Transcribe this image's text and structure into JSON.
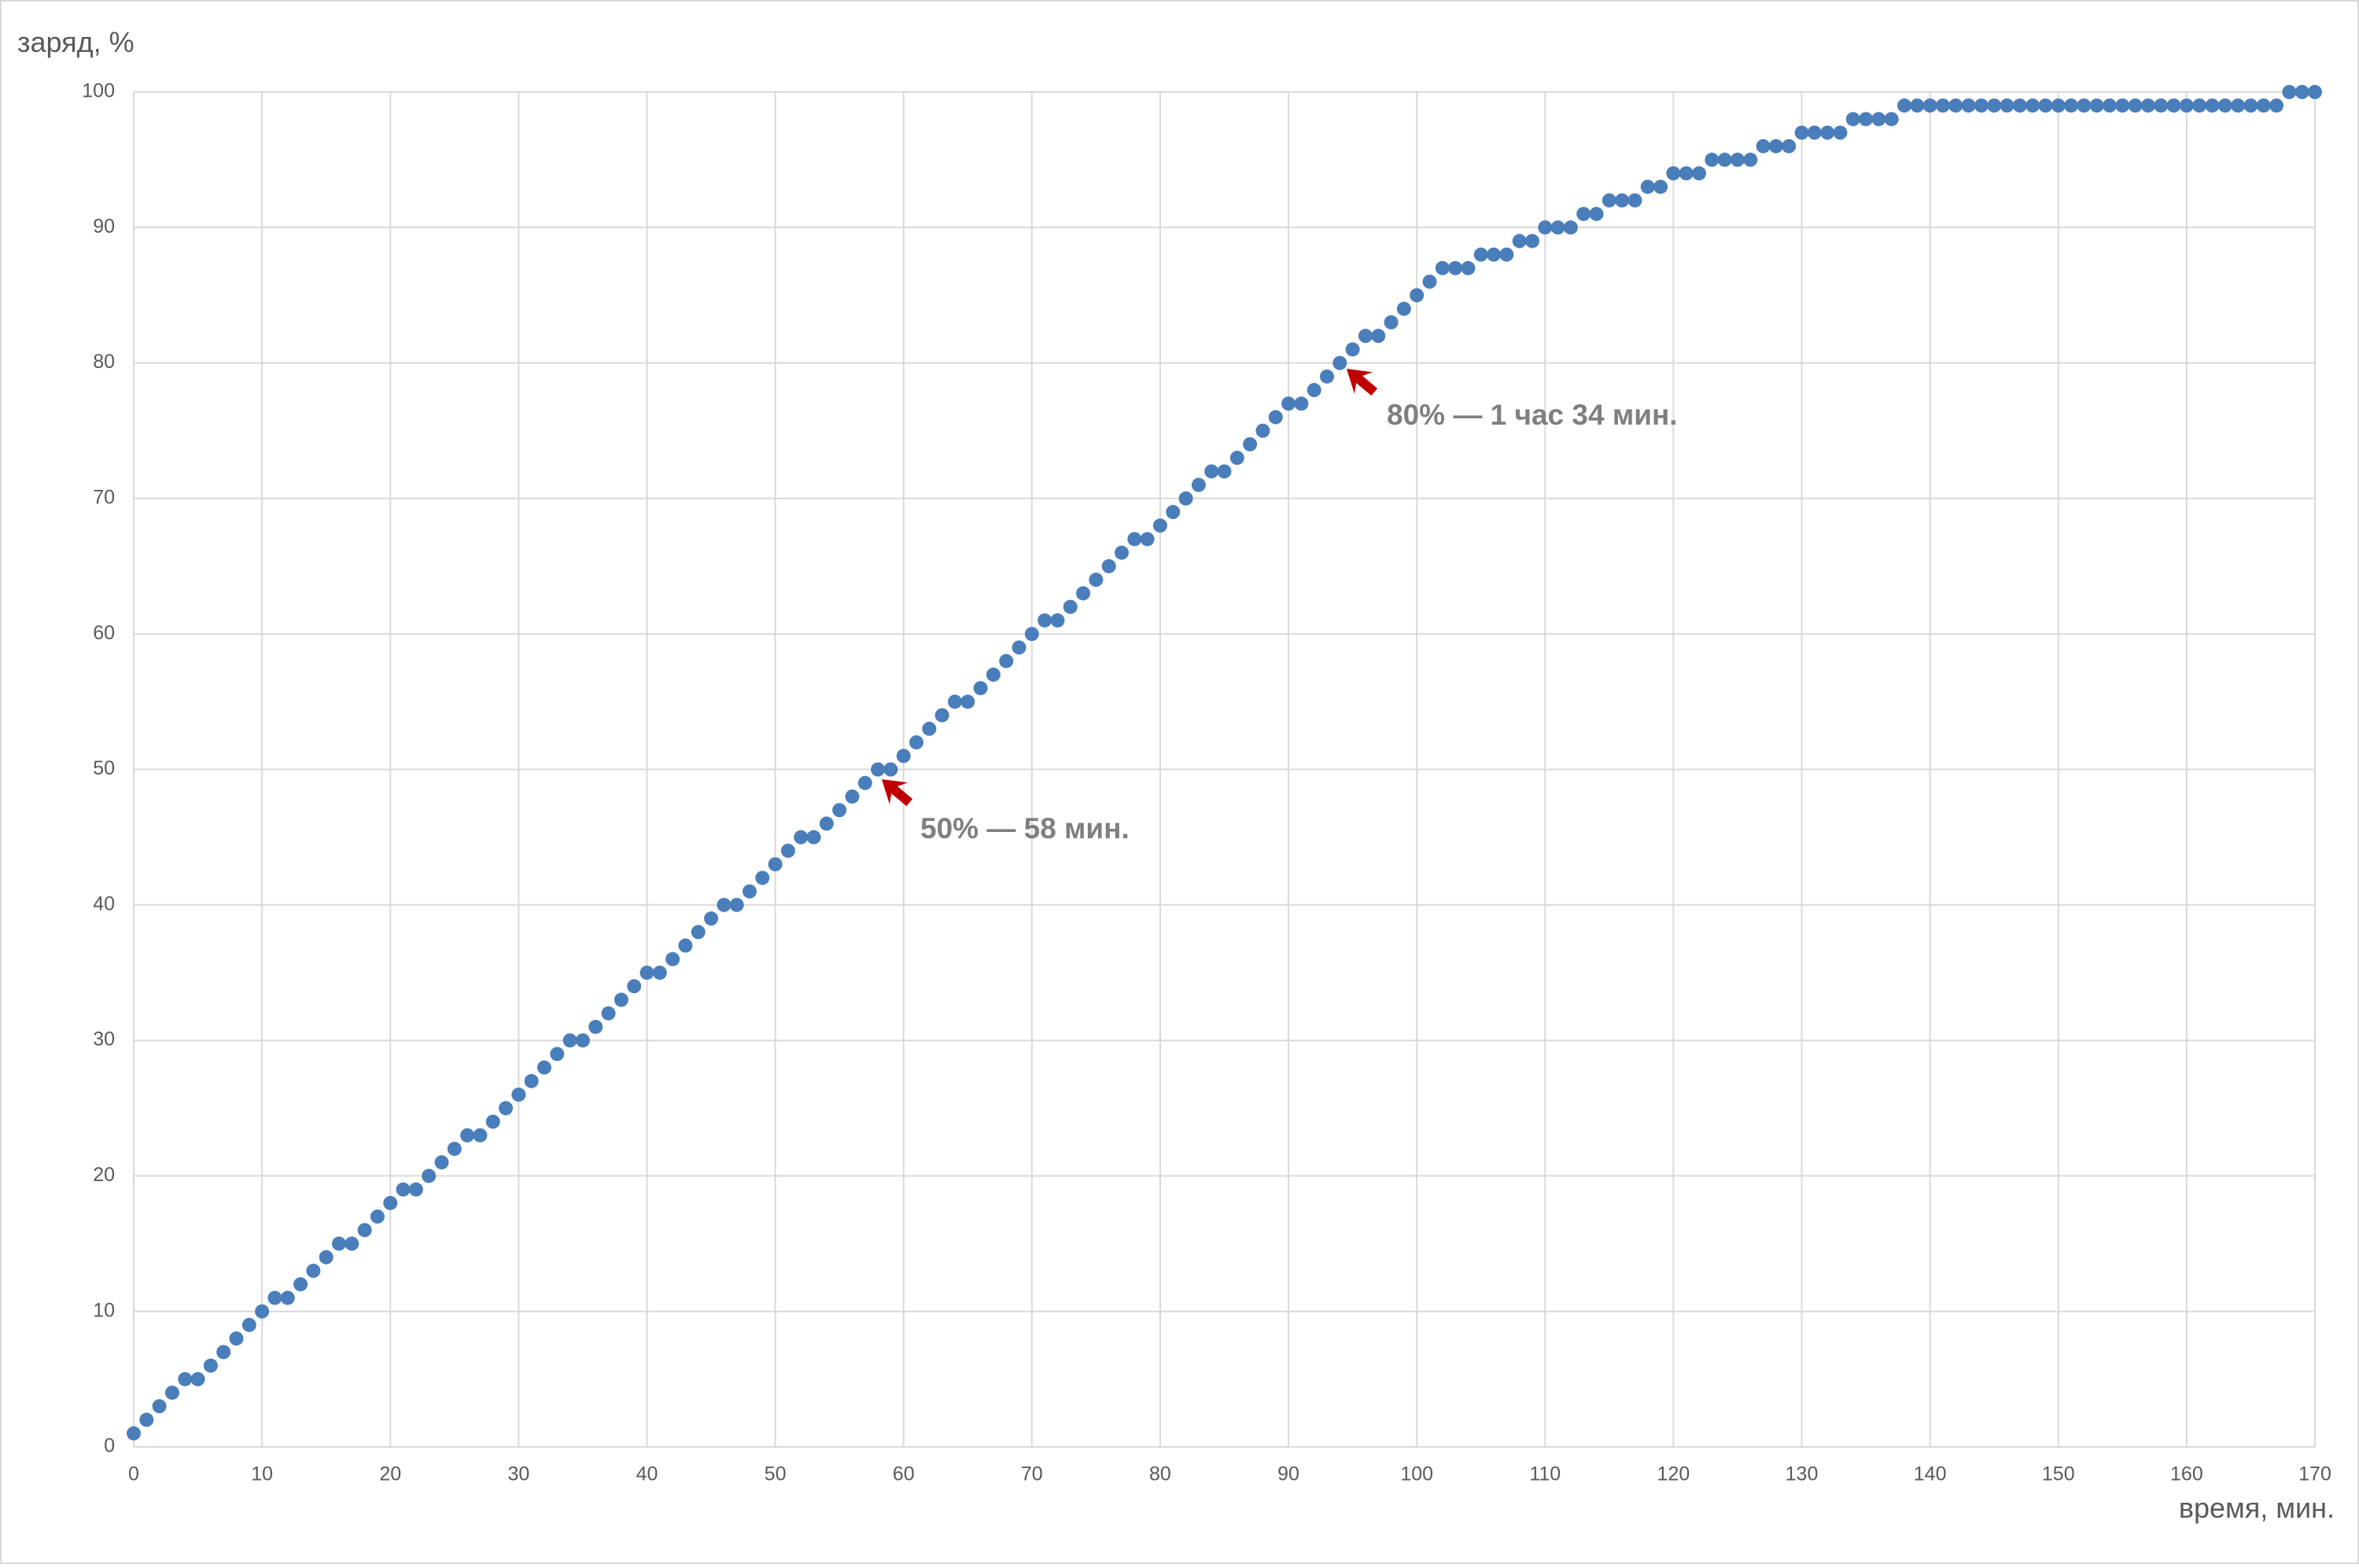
{
  "chart_data": {
    "type": "scatter",
    "y_label": "заряд, %",
    "x_label": "время, мин.",
    "annotations": [
      "80% — 1 час 34 мин.",
      "50% — 58 мин."
    ],
    "color": "#4a7ebb",
    "grid": true,
    "xlim": [
      0,
      170
    ],
    "xticks": [
      0,
      10,
      20,
      30,
      40,
      50,
      60,
      70,
      80,
      90,
      100,
      110,
      120,
      130,
      140,
      150,
      160,
      170
    ],
    "ylim": [
      0,
      100
    ],
    "yticks": [
      0,
      10,
      20,
      30,
      40,
      50,
      60,
      70,
      80,
      90,
      100
    ],
    "x": [
      0,
      1,
      2,
      3,
      4,
      5,
      6,
      7,
      8,
      9,
      10,
      11,
      12,
      13,
      14,
      15,
      16,
      17,
      18,
      19,
      20,
      21,
      22,
      23,
      24,
      25,
      26,
      27,
      28,
      29,
      30,
      31,
      32,
      33,
      34,
      35,
      36,
      37,
      38,
      39,
      40,
      41,
      42,
      43,
      44,
      45,
      46,
      47,
      48,
      49,
      50,
      51,
      52,
      53,
      54,
      55,
      56,
      57,
      58,
      59,
      60,
      61,
      62,
      63,
      64,
      65,
      66,
      67,
      68,
      69,
      70,
      71,
      72,
      73,
      74,
      75,
      76,
      77,
      78,
      79,
      80,
      81,
      82,
      83,
      84,
      85,
      86,
      87,
      88,
      89,
      90,
      91,
      92,
      93,
      94,
      95,
      96,
      97,
      98,
      99,
      100,
      101,
      102,
      103,
      104,
      105,
      106,
      107,
      108,
      109,
      110,
      111,
      112,
      113,
      114,
      115,
      116,
      117,
      118,
      119,
      120,
      121,
      122,
      123,
      124,
      125,
      126,
      127,
      128,
      129,
      130,
      131,
      132,
      133,
      134,
      135,
      136,
      137,
      138,
      139,
      140,
      141,
      142,
      143,
      144,
      145,
      146,
      147,
      148,
      149,
      150,
      151,
      152,
      153,
      154,
      155,
      156,
      157,
      158,
      159,
      160,
      161,
      162,
      163,
      164,
      165,
      166,
      167,
      168,
      169,
      170
    ],
    "values": [
      1,
      2,
      3,
      4,
      5,
      5,
      6,
      7,
      8,
      9,
      10,
      11,
      11,
      12,
      13,
      14,
      15,
      15,
      16,
      17,
      18,
      19,
      19,
      20,
      21,
      22,
      23,
      23,
      24,
      25,
      26,
      27,
      28,
      29,
      30,
      30,
      31,
      32,
      33,
      34,
      35,
      35,
      36,
      37,
      38,
      39,
      40,
      40,
      41,
      42,
      43,
      44,
      45,
      45,
      46,
      47,
      48,
      49,
      50,
      50,
      51,
      52,
      53,
      54,
      55,
      55,
      56,
      57,
      58,
      59,
      60,
      61,
      61,
      62,
      63,
      64,
      65,
      66,
      67,
      67,
      68,
      69,
      70,
      71,
      72,
      72,
      73,
      74,
      75,
      76,
      77,
      77,
      78,
      79,
      80,
      81,
      82,
      82,
      83,
      84,
      85,
      86,
      87,
      87,
      87,
      88,
      88,
      88,
      89,
      89,
      90,
      90,
      90,
      91,
      91,
      92,
      92,
      92,
      93,
      93,
      94,
      94,
      94,
      95,
      95,
      95,
      95,
      96,
      96,
      96,
      97,
      97,
      97,
      97,
      98,
      98,
      98,
      98,
      99,
      99,
      99,
      99,
      99,
      99,
      99,
      99,
      99,
      99,
      99,
      99,
      99,
      99,
      99,
      99,
      99,
      99,
      99,
      99,
      99,
      99,
      99,
      99,
      99,
      99,
      99,
      99,
      99,
      99,
      100,
      100,
      100
    ]
  }
}
